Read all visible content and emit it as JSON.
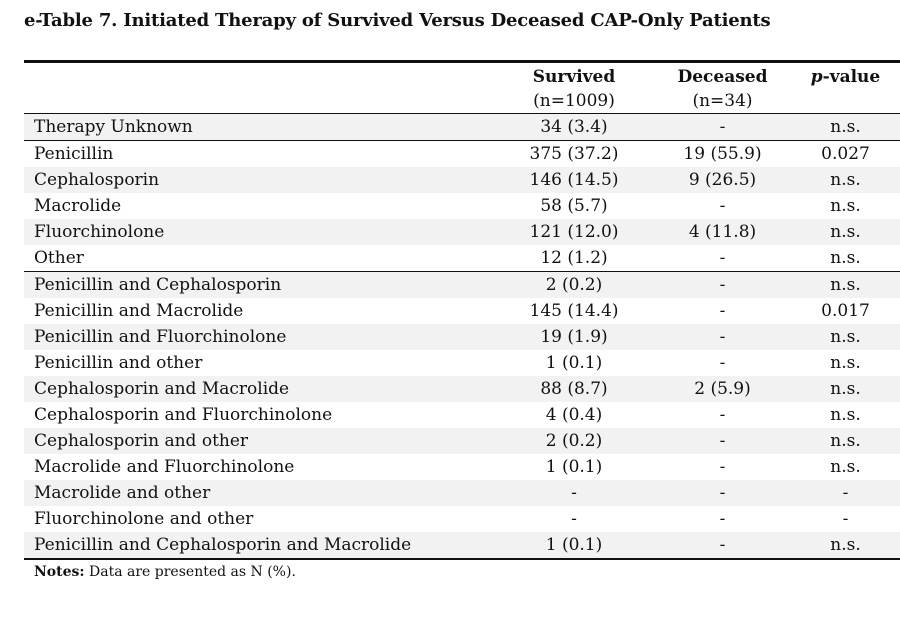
{
  "title": "e-Table 7. Initiated Therapy of Survived Versus Deceased CAP-Only Patients",
  "columns": {
    "survived": {
      "label": "Survived",
      "sub": "(n=1009)"
    },
    "deceased": {
      "label": "Deceased",
      "sub": "(n=34)"
    },
    "pvalue": {
      "label_italic": "p",
      "label_rest": "-value"
    }
  },
  "rows": [
    {
      "label": "Therapy Unknown",
      "survived": "34 (3.4)",
      "deceased": "-",
      "p": "n.s."
    },
    {
      "label": "Penicillin",
      "survived": "375 (37.2)",
      "deceased": "19 (55.9)",
      "p": "0.027"
    },
    {
      "label": "Cephalosporin",
      "survived": "146 (14.5)",
      "deceased": "9 (26.5)",
      "p": "n.s."
    },
    {
      "label": "Macrolide",
      "survived": "58 (5.7)",
      "deceased": "-",
      "p": "n.s."
    },
    {
      "label": "Fluorchinolone",
      "survived": "121 (12.0)",
      "deceased": "4 (11.8)",
      "p": "n.s."
    },
    {
      "label": "Other",
      "survived": "12 (1.2)",
      "deceased": "-",
      "p": "n.s."
    },
    {
      "label": "Penicillin and Cephalosporin",
      "survived": "2 (0.2)",
      "deceased": "-",
      "p": "n.s."
    },
    {
      "label": "Penicillin and Macrolide",
      "survived": "145 (14.4)",
      "deceased": "-",
      "p": "0.017"
    },
    {
      "label": "Penicillin and Fluorchinolone",
      "survived": "19 (1.9)",
      "deceased": "-",
      "p": "n.s."
    },
    {
      "label": "Penicillin and other",
      "survived": "1 (0.1)",
      "deceased": "-",
      "p": "n.s."
    },
    {
      "label": "Cephalosporin and Macrolide",
      "survived": "88 (8.7)",
      "deceased": "2 (5.9)",
      "p": "n.s."
    },
    {
      "label": "Cephalosporin and Fluorchinolone",
      "survived": "4 (0.4)",
      "deceased": "-",
      "p": "n.s."
    },
    {
      "label": "Cephalosporin and other",
      "survived": "2 (0.2)",
      "deceased": "-",
      "p": "n.s."
    },
    {
      "label": "Macrolide and Fluorchinolone",
      "survived": "1 (0.1)",
      "deceased": "-",
      "p": "n.s."
    },
    {
      "label": "Macrolide and other",
      "survived": "-",
      "deceased": "-",
      "p": "-"
    },
    {
      "label": "Fluorchinolone and other",
      "survived": "-",
      "deceased": "-",
      "p": "-"
    },
    {
      "label": "Penicillin and Cephalosporin and Macrolide",
      "survived": "1 (0.1)",
      "deceased": "-",
      "p": "n.s."
    }
  ],
  "notes": {
    "label": "Notes:",
    "text": " Data are presented as N (%)."
  }
}
